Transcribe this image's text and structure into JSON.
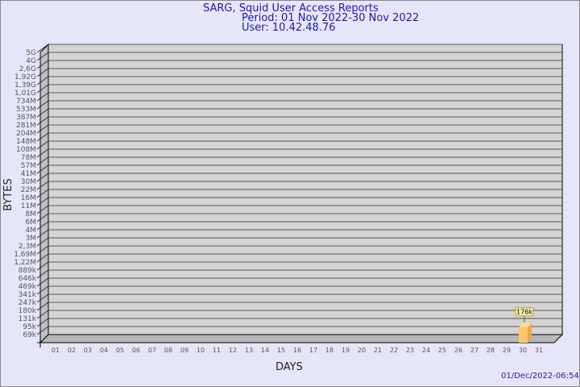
{
  "chart_data": {
    "type": "bar",
    "title": "SARG, Squid User Access Reports",
    "subtitle": [
      "Period: 01 Nov 2022-30 Nov 2022",
      "User: 10.42.48.76"
    ],
    "xlabel": "DAYS",
    "ylabel": "BYTES",
    "y_scale": "log",
    "y_ticks": [
      "5G",
      "4G",
      "2,6G",
      "1,92G",
      "1,39G",
      "1,01G",
      "734M",
      "533M",
      "387M",
      "281M",
      "204M",
      "148M",
      "108M",
      "78M",
      "57M",
      "41M",
      "30M",
      "22M",
      "16M",
      "11M",
      "8M",
      "6M",
      "4M",
      "3M",
      "2,3M",
      "1,69M",
      "1,22M",
      "889k",
      "646k",
      "469k",
      "341k",
      "247k",
      "180k",
      "131k",
      "95k",
      "69k"
    ],
    "categories": [
      "01",
      "02",
      "03",
      "04",
      "05",
      "06",
      "07",
      "08",
      "09",
      "10",
      "11",
      "12",
      "13",
      "14",
      "15",
      "16",
      "17",
      "18",
      "19",
      "20",
      "21",
      "22",
      "23",
      "24",
      "25",
      "26",
      "27",
      "28",
      "29",
      "30",
      "31"
    ],
    "bars": [
      {
        "day": "30",
        "value": 176000,
        "label": "176k"
      }
    ],
    "grid": true,
    "colors": {
      "bar": "#ffc56a",
      "bar_side": "#e8a94c",
      "wall": "#d3d3d3",
      "title": "#1a1aa6"
    }
  },
  "footer": {
    "timestamp": "01/Dec/2022-06:54"
  }
}
